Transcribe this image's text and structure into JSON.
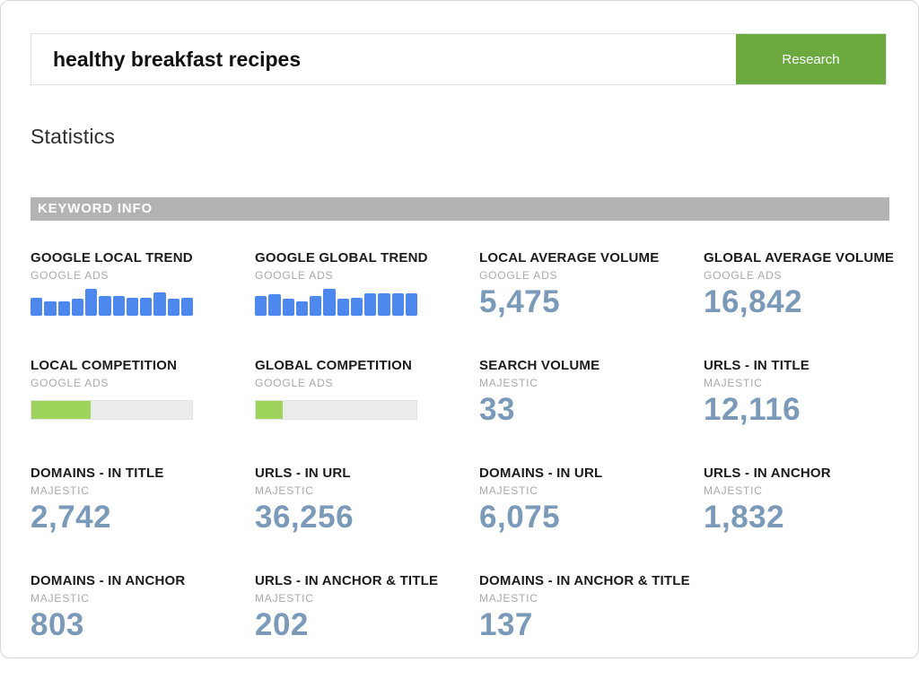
{
  "search": {
    "value": "healthy breakfast recipes",
    "button_label": "Research",
    "button_color": "#6ca93f"
  },
  "page": {
    "section_title": "Statistics",
    "banner_label": "KEYWORD INFO",
    "banner_color": "#b3b3b3"
  },
  "colors": {
    "value_blue": "#7b99b8",
    "trend_bar_blue": "#4d88ef",
    "progress_green": "#9fd45c",
    "progress_track": "#ececec"
  },
  "stats": {
    "cards": [
      {
        "type": "trend",
        "title": "GOOGLE LOCAL TREND",
        "source": "GOOGLE ADS",
        "bars": [
          68,
          55,
          55,
          62,
          100,
          72,
          72,
          68,
          68,
          88,
          62,
          68
        ]
      },
      {
        "type": "trend",
        "title": "GOOGLE GLOBAL TREND",
        "source": "GOOGLE ADS",
        "bars": [
          72,
          80,
          62,
          52,
          72,
          100,
          65,
          68,
          82,
          82,
          82,
          82
        ]
      },
      {
        "type": "number",
        "title": "LOCAL AVERAGE VOLUME",
        "source": "GOOGLE ADS",
        "value": "5,475"
      },
      {
        "type": "number",
        "title": "GLOBAL AVERAGE VOLUME",
        "source": "GOOGLE ADS",
        "value": "16,842"
      },
      {
        "type": "progress",
        "title": "LOCAL COMPETITION",
        "source": "GOOGLE ADS",
        "percent": 37
      },
      {
        "type": "progress",
        "title": "GLOBAL COMPETITION",
        "source": "GOOGLE ADS",
        "percent": 17
      },
      {
        "type": "number",
        "title": "SEARCH VOLUME",
        "source": "MAJESTIC",
        "value": "33"
      },
      {
        "type": "number",
        "title": "URLS - IN TITLE",
        "source": "MAJESTIC",
        "value": "12,116"
      },
      {
        "type": "number",
        "title": "DOMAINS - IN TITLE",
        "source": "MAJESTIC",
        "value": "2,742"
      },
      {
        "type": "number",
        "title": "URLS - IN URL",
        "source": "MAJESTIC",
        "value": "36,256"
      },
      {
        "type": "number",
        "title": "DOMAINS - IN URL",
        "source": "MAJESTIC",
        "value": "6,075"
      },
      {
        "type": "number",
        "title": "URLS - IN ANCHOR",
        "source": "MAJESTIC",
        "value": "1,832"
      },
      {
        "type": "number",
        "title": "DOMAINS - IN ANCHOR",
        "source": "MAJESTIC",
        "value": "803"
      },
      {
        "type": "number",
        "title": "URLS - IN ANCHOR & TITLE",
        "source": "MAJESTIC",
        "value": "202"
      },
      {
        "type": "number",
        "title": "DOMAINS - IN ANCHOR & TITLE",
        "source": "MAJESTIC",
        "value": "137"
      }
    ]
  }
}
